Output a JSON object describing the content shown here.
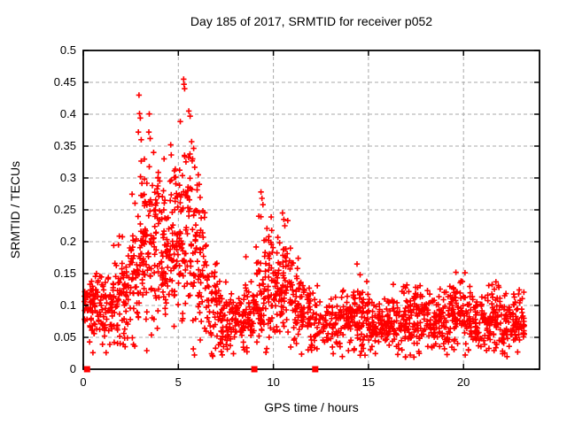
{
  "chart_data": {
    "type": "scatter",
    "title": "Day 185 of 2017, SRMTID for receiver p052",
    "xlabel": "GPS time / hours",
    "ylabel": "SRMTID / TECUs",
    "xlim": [
      0,
      24
    ],
    "ylim": [
      0,
      0.5
    ],
    "xticks": [
      [
        0,
        "0"
      ],
      [
        5,
        "5"
      ],
      [
        10,
        "10"
      ],
      [
        15,
        "15"
      ],
      [
        20,
        "20"
      ]
    ],
    "yticks": [
      [
        0,
        "0"
      ],
      [
        0.05,
        "0.05"
      ],
      [
        0.1,
        "0.1"
      ],
      [
        0.15,
        "0.15"
      ],
      [
        0.2,
        "0.2"
      ],
      [
        0.25,
        "0.25"
      ],
      [
        0.3,
        "0.3"
      ],
      [
        0.35,
        "0.35"
      ],
      [
        0.4,
        "0.4"
      ],
      [
        0.45,
        "0.45"
      ],
      [
        0.5,
        "0.5"
      ]
    ],
    "grid": true,
    "legend": "none",
    "marker": "plus",
    "marker_color": "#ff0000",
    "grid_color": "#a8a8a8",
    "axis_color": "#000000",
    "background": "#ffffff",
    "xmax_data": 23.2,
    "bin_width": 0.5,
    "seed": 20170185,
    "scatter_profile": [
      [
        0.0,
        40,
        0.095,
        0.025
      ],
      [
        0.5,
        42,
        0.095,
        0.028
      ],
      [
        1.0,
        40,
        0.09,
        0.03
      ],
      [
        1.5,
        42,
        0.1,
        0.035
      ],
      [
        2.0,
        45,
        0.12,
        0.045
      ],
      [
        2.5,
        50,
        0.16,
        0.06
      ],
      [
        3.0,
        55,
        0.21,
        0.07
      ],
      [
        3.5,
        55,
        0.2,
        0.065
      ],
      [
        4.0,
        55,
        0.2,
        0.06
      ],
      [
        4.5,
        55,
        0.21,
        0.065
      ],
      [
        5.0,
        55,
        0.23,
        0.07
      ],
      [
        5.5,
        50,
        0.21,
        0.07
      ],
      [
        6.0,
        45,
        0.15,
        0.05
      ],
      [
        6.5,
        42,
        0.11,
        0.035
      ],
      [
        7.0,
        40,
        0.085,
        0.028
      ],
      [
        7.5,
        40,
        0.075,
        0.022
      ],
      [
        8.0,
        40,
        0.08,
        0.024
      ],
      [
        8.5,
        42,
        0.09,
        0.03
      ],
      [
        9.0,
        45,
        0.115,
        0.045
      ],
      [
        9.5,
        48,
        0.135,
        0.05
      ],
      [
        10.0,
        45,
        0.115,
        0.04
      ],
      [
        10.5,
        48,
        0.135,
        0.045
      ],
      [
        11.0,
        42,
        0.1,
        0.032
      ],
      [
        11.5,
        40,
        0.088,
        0.028
      ],
      [
        12.0,
        28,
        0.068,
        0.022
      ],
      [
        12.5,
        26,
        0.065,
        0.02
      ],
      [
        13.0,
        32,
        0.07,
        0.02
      ],
      [
        13.5,
        36,
        0.075,
        0.024
      ],
      [
        14.0,
        42,
        0.082,
        0.027
      ],
      [
        14.5,
        42,
        0.085,
        0.03
      ],
      [
        15.0,
        40,
        0.07,
        0.02
      ],
      [
        15.5,
        40,
        0.071,
        0.021
      ],
      [
        16.0,
        40,
        0.076,
        0.024
      ],
      [
        16.5,
        42,
        0.08,
        0.025
      ],
      [
        17.0,
        42,
        0.08,
        0.026
      ],
      [
        17.5,
        42,
        0.086,
        0.03
      ],
      [
        18.0,
        40,
        0.076,
        0.024
      ],
      [
        18.5,
        40,
        0.071,
        0.021
      ],
      [
        19.0,
        42,
        0.08,
        0.028
      ],
      [
        19.5,
        42,
        0.09,
        0.03
      ],
      [
        20.0,
        40,
        0.076,
        0.024
      ],
      [
        20.5,
        40,
        0.07,
        0.02
      ],
      [
        21.0,
        40,
        0.075,
        0.024
      ],
      [
        21.5,
        42,
        0.08,
        0.028
      ],
      [
        22.0,
        40,
        0.072,
        0.025
      ],
      [
        22.5,
        40,
        0.075,
        0.028
      ],
      [
        23.0,
        20,
        0.07,
        0.025
      ]
    ],
    "outliers": [
      [
        2.93,
        0.43
      ],
      [
        2.96,
        0.401
      ],
      [
        3.0,
        0.394
      ],
      [
        2.9,
        0.372
      ],
      [
        3.05,
        0.36
      ],
      [
        3.45,
        0.372
      ],
      [
        3.52,
        0.362
      ],
      [
        3.7,
        0.34
      ],
      [
        4.25,
        0.33
      ],
      [
        4.6,
        0.352
      ],
      [
        5.28,
        0.455
      ],
      [
        5.3,
        0.447
      ],
      [
        5.33,
        0.44
      ],
      [
        5.55,
        0.405
      ],
      [
        5.62,
        0.397
      ],
      [
        5.7,
        0.357
      ],
      [
        5.75,
        0.33
      ],
      [
        6.05,
        0.305
      ],
      [
        6.1,
        0.29
      ],
      [
        9.35,
        0.278
      ],
      [
        9.4,
        0.268
      ],
      [
        9.45,
        0.258
      ],
      [
        10.48,
        0.245
      ],
      [
        10.55,
        0.235
      ],
      [
        10.6,
        0.225
      ],
      [
        1.85,
        0.195
      ],
      [
        14.4,
        0.165
      ],
      [
        19.6,
        0.152
      ],
      [
        22.9,
        0.118
      ],
      [
        1.2,
        0.026
      ]
    ],
    "zero_square_markers_x": [
      0.2,
      9.0,
      12.2
    ]
  }
}
